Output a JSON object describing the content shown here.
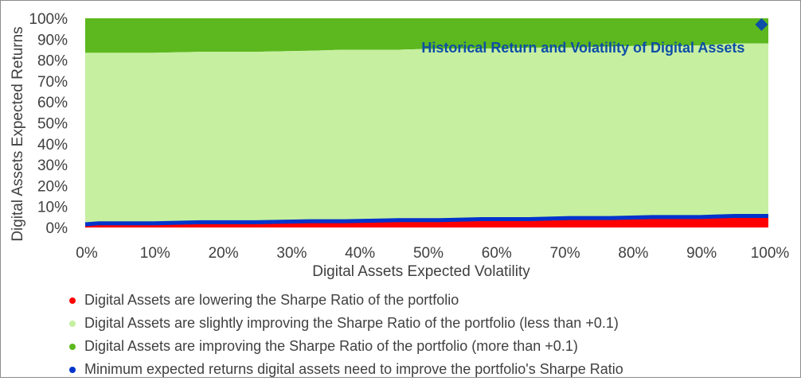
{
  "chart_data": {
    "type": "area",
    "x_axis": {
      "label": "Digital Assets Expected Volatility",
      "ticks": [
        "0%",
        "10%",
        "20%",
        "30%",
        "40%",
        "50%",
        "60%",
        "70%",
        "80%",
        "90%",
        "100%"
      ],
      "range": [
        0,
        100
      ]
    },
    "y_axis": {
      "label": "Digital Assets Expected Returns",
      "ticks": [
        "0%",
        "10%",
        "20%",
        "30%",
        "40%",
        "50%",
        "60%",
        "70%",
        "80%",
        "90%",
        "100%"
      ],
      "range": [
        0,
        100
      ]
    },
    "x": [
      0,
      2,
      10,
      17,
      25,
      33,
      38,
      46,
      52,
      58,
      65,
      71,
      77,
      83,
      90,
      95,
      100
    ],
    "series": [
      {
        "name": "Digital Assets are lowering the Sharpe Ratio of the portfolio",
        "color": "#ff0000",
        "lower": [
          0,
          0,
          0,
          0,
          0,
          0,
          0,
          0,
          0,
          0,
          0,
          0,
          0,
          0,
          0,
          0,
          0
        ],
        "upper": [
          1.5,
          2.0,
          2.0,
          2.5,
          2.5,
          3.0,
          3.0,
          3.5,
          3.5,
          4.0,
          4.0,
          4.5,
          4.5,
          5.0,
          5.0,
          5.5,
          5.5
        ]
      },
      {
        "name": "Minimum expected returns digital assets need to improve the portfolio's Sharpe Ratio",
        "color": "#0033cc",
        "values": [
          1.5,
          2.0,
          2.0,
          2.5,
          2.5,
          3.0,
          3.0,
          3.5,
          3.5,
          4.0,
          4.0,
          4.5,
          4.5,
          5.0,
          5.0,
          5.5,
          5.5
        ]
      },
      {
        "name": "Digital Assets are slightly improving the Sharpe Ratio of the portfolio (less than +0.1)",
        "color": "#c6efa0",
        "lower": [
          1.5,
          2.0,
          2.0,
          2.5,
          2.5,
          3.0,
          3.0,
          3.5,
          3.5,
          4.0,
          4.0,
          4.5,
          4.5,
          5.0,
          5.0,
          5.5,
          5.5
        ],
        "upper": [
          83.5,
          83.5,
          83.5,
          84,
          84,
          84.5,
          85,
          85,
          85.5,
          85.5,
          86,
          86,
          86.5,
          87,
          87,
          88,
          88
        ]
      },
      {
        "name": "Digital Assets are improving the Sharpe Ratio of the portfolio (more than +0.1)",
        "color": "#5cb81e",
        "lower": [
          83.5,
          83.5,
          83.5,
          84,
          84,
          84.5,
          85,
          85,
          85.5,
          85.5,
          86,
          86,
          86.5,
          87,
          87,
          88,
          88
        ],
        "upper": [
          100,
          100,
          100,
          100,
          100,
          100,
          100,
          100,
          100,
          100,
          100,
          100,
          100,
          100,
          100,
          100,
          100
        ]
      }
    ],
    "points": [
      {
        "x": 99,
        "y": 97,
        "marker": "diamond",
        "color": "#0d4ea6",
        "label": "Historical Return and Volatility of Digital Assets"
      }
    ],
    "legend": {
      "position": "bottom",
      "items": [
        {
          "label": "Digital Assets are lowering the Sharpe Ratio of the portfolio",
          "color": "#ff0000"
        },
        {
          "label": "Digital Assets are slightly improving the Sharpe Ratio of the portfolio (less than +0.1)",
          "color": "#c6efa0"
        },
        {
          "label": "Digital Assets are improving the Sharpe Ratio of the portfolio (more than +0.1)",
          "color": "#5cb81e"
        },
        {
          "label": "Minimum expected returns digital assets need to improve the portfolio's Sharpe Ratio",
          "color": "#0033cc"
        }
      ]
    },
    "grid": false
  }
}
